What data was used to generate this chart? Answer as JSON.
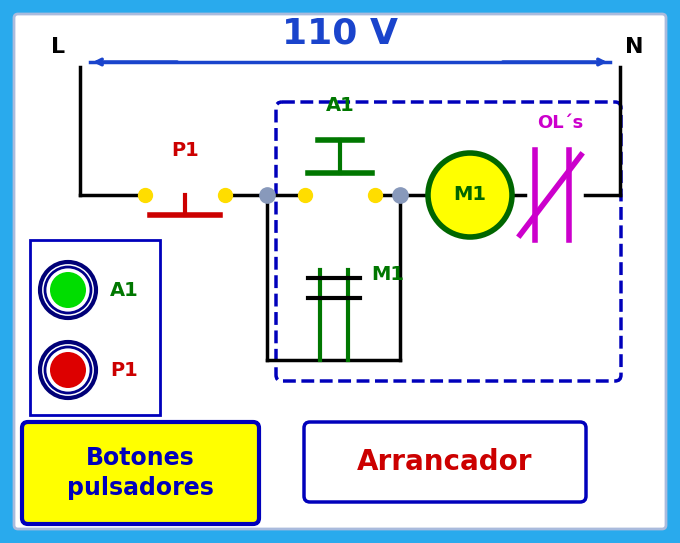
{
  "bg_outer": "#29aaed",
  "bg_inner": "#ffffff",
  "title": "110 V",
  "title_color": "#1a44cc",
  "title_fontsize": 26,
  "L_label": "L",
  "N_label": "N",
  "label_color": "black",
  "label_fontsize": 16,
  "arrow_color": "#1a44cc",
  "wire_color": "black",
  "green_color": "#007700",
  "red_color": "#cc0000",
  "magenta_color": "#cc00cc",
  "yellow_color": "#ffdd00",
  "blue_dashed_color": "#0000bb",
  "motor_fill": "#ffff00",
  "motor_border": "#006600",
  "motor_label": "M1",
  "motor_label_color": "#006600",
  "P1_label": "P1",
  "A1_label": "A1",
  "M1_label": "M1",
  "OL_label": "OL´s",
  "botones_label": "Botones\npulsadores",
  "arrancador_label": "Arrancador",
  "botones_color": "#0000bb",
  "arrancador_color": "#cc0000",
  "botones_bg": "#ffff00",
  "arrancador_bg": "#ffffff",
  "node_color": "#8899bb"
}
